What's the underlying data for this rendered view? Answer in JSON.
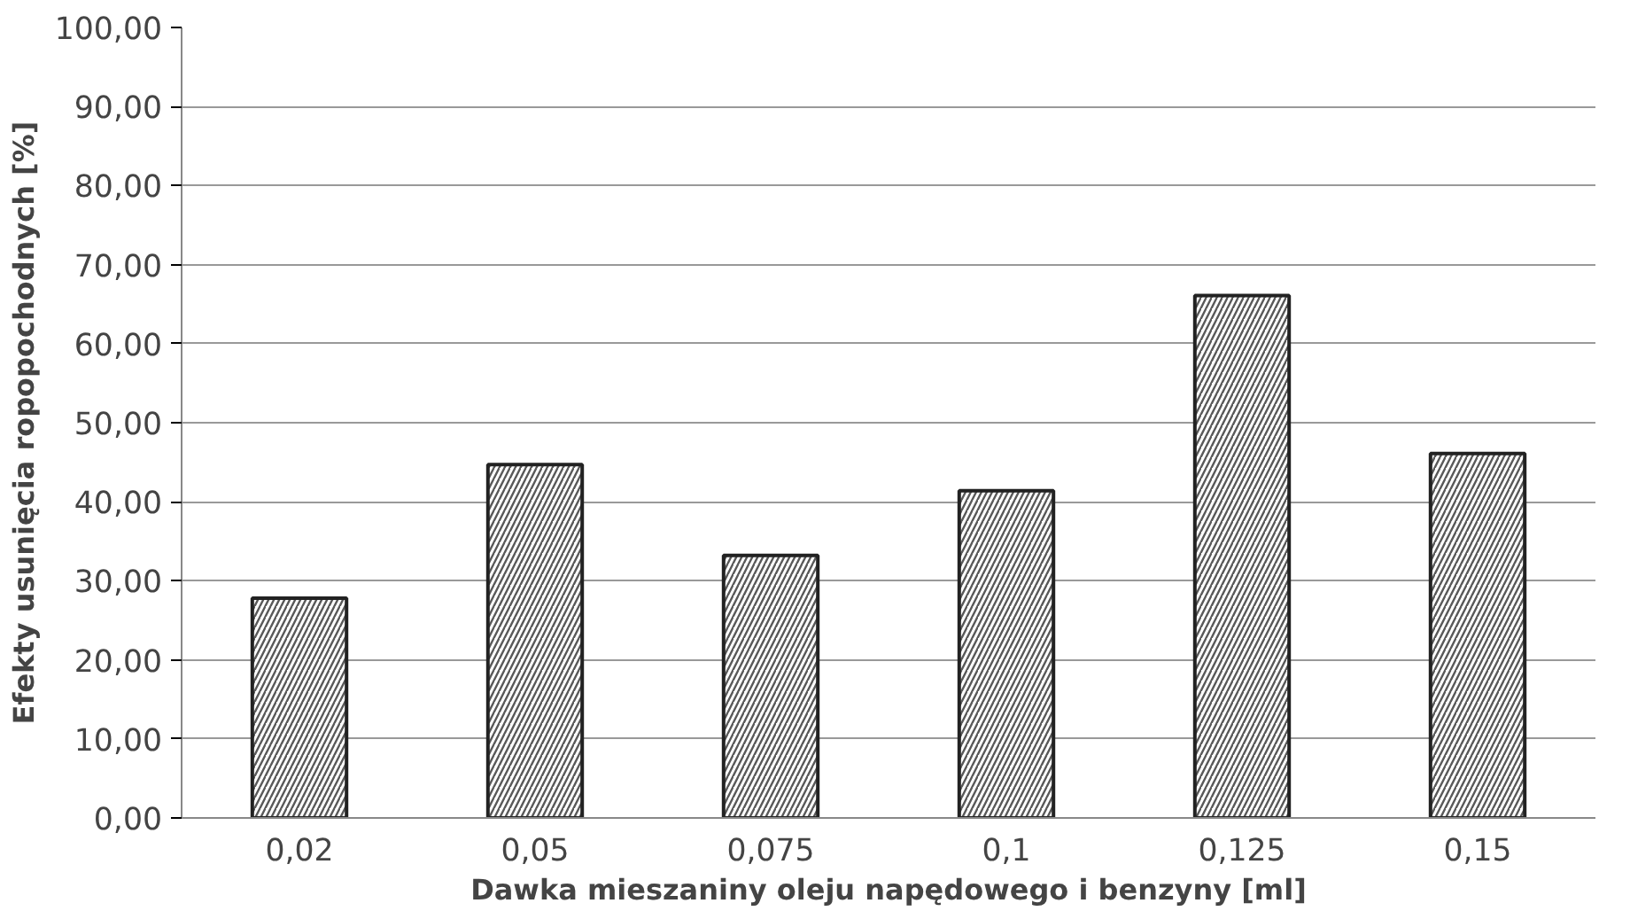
{
  "chart_data": {
    "type": "bar",
    "xlabel": "Dawka mieszaniny oleju napędowego i benzyny [ml]",
    "ylabel": "Efekty usunięcia ropopochodnych [%]",
    "categories": [
      "0,02",
      "0,05",
      "0,075",
      "0,1",
      "0,125",
      "0,15"
    ],
    "values": [
      27.8,
      44.7,
      33.2,
      41.4,
      66.1,
      46.1
    ],
    "color": "#ffffff",
    "ylim": [
      0,
      100
    ],
    "yticks": [
      {
        "value": 0,
        "label": "0,00"
      },
      {
        "value": 10,
        "label": "10,00"
      },
      {
        "value": 20,
        "label": "20,00"
      },
      {
        "value": 30,
        "label": "30,00"
      },
      {
        "value": 40,
        "label": "40,00"
      },
      {
        "value": 50,
        "label": "50,00"
      },
      {
        "value": 60,
        "label": "60,00"
      },
      {
        "value": 70,
        "label": "70,00"
      },
      {
        "value": 80,
        "label": "80,00"
      },
      {
        "value": 90,
        "label": "90,00"
      },
      {
        "value": 100,
        "label": "100,00"
      }
    ],
    "grid": "y"
  }
}
